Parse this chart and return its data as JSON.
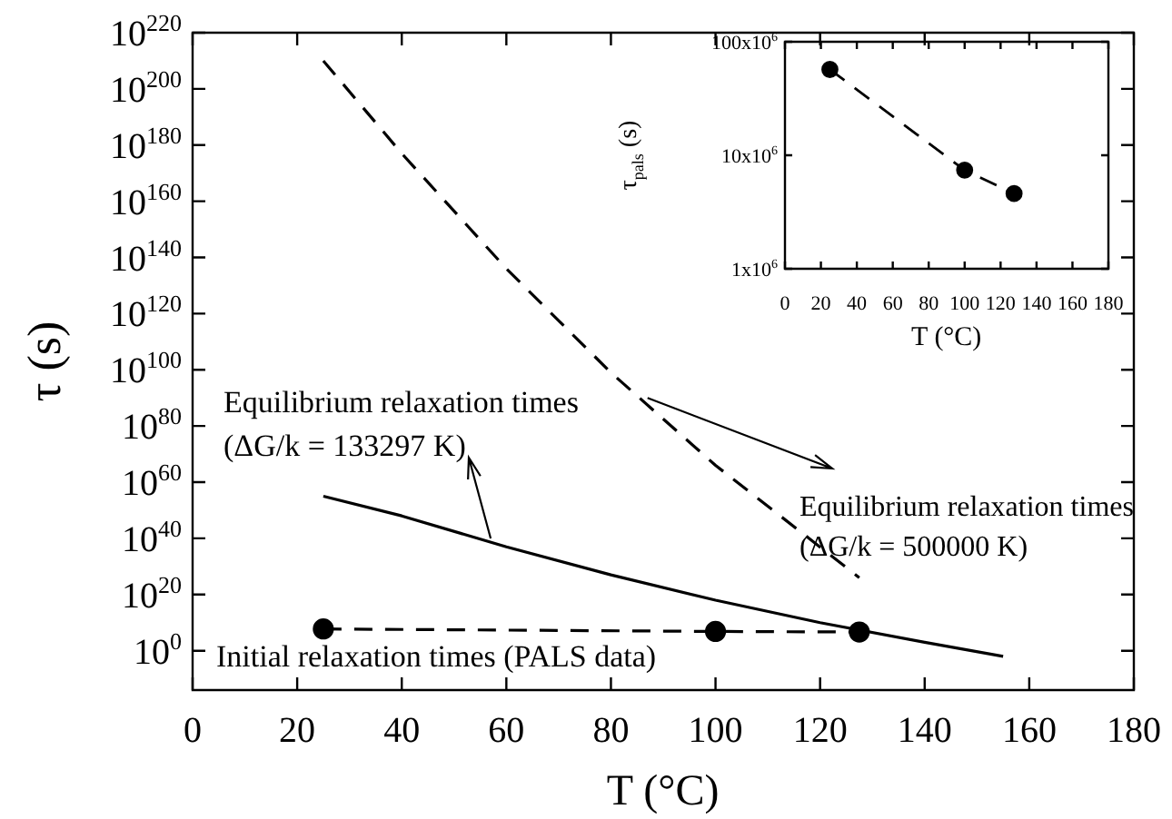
{
  "chart_data": [
    {
      "type": "line",
      "xlabel": "T (°C)",
      "ylabel": "τ (s)",
      "log": "y",
      "xlim": [
        0,
        180
      ],
      "xticks": [
        0,
        20,
        40,
        60,
        80,
        100,
        120,
        140,
        160,
        180
      ],
      "ylim": [
        1e-14,
        1e+220
      ],
      "yticks": [
        {
          "value": 1,
          "label": "10$^{0}$"
        },
        {
          "value": 1e+20,
          "label": "10$^{20}$"
        },
        {
          "value": 1e+40,
          "label": "10$^{40}$"
        },
        {
          "value": 1e+60,
          "label": "10$^{60}$"
        },
        {
          "value": 1e+80,
          "label": "10$^{80}$"
        },
        {
          "value": 1e+100,
          "label": "10$^{100}$"
        },
        {
          "value": 1e+120,
          "label": "10$^{120}$"
        },
        {
          "value": 1e+140,
          "label": "10$^{140}$"
        },
        {
          "value": 1e+160,
          "label": "10$^{160}$"
        },
        {
          "value": 1e+180,
          "label": "10$^{180}$"
        },
        {
          "value": 1e+200,
          "label": "10$^{200}$"
        },
        {
          "value": 1e+220,
          "label": "10$^{220}$"
        }
      ],
      "series": [
        {
          "color": "#000000",
          "line_style": "dashed",
          "marker": "none",
          "x": [
            25,
            40,
            60,
            80,
            100,
            127.5
          ],
          "values": [
            1e+210,
            1e+177,
            1e+136,
            1e+99,
            1e+66,
            1e+26
          ]
        },
        {
          "color": "#000000",
          "line_style": "solid",
          "marker": "none",
          "x": [
            25,
            40,
            60,
            80,
            100,
            120,
            140,
            155
          ],
          "values": [
            1e+55,
            1e+48,
            1e+37,
            1e+27,
            1e+18,
            10000000000.0,
            1000.0,
            0.01
          ]
        },
        {
          "color": "#000000",
          "line_style": "dashed",
          "marker": "circle",
          "x": [
            25,
            100,
            127.5
          ],
          "values": [
            57000000.0,
            7400000.0,
            4600000.0
          ]
        }
      ],
      "annotations": [
        {
          "text": "Equilibrium relaxation times\n(ΔG/k = 133297 K)",
          "x": 57,
          "y": 1e+40
        },
        {
          "text": "Equilibrium relaxation times\n(ΔG/k = 500000 K)",
          "x": 87,
          "y": 1e+90
        },
        "Initial relaxation times (PALS data)"
      ]
    },
    {
      "type": "line",
      "xlabel": "T (°C)",
      "ylabel": "τ$_{pals}$ (s)",
      "log": "y",
      "xlim": [
        0,
        180
      ],
      "xticks": [
        0,
        20,
        40,
        60,
        80,
        100,
        120,
        140,
        160,
        180
      ],
      "ylim": [
        1000000.0,
        100000000.0
      ],
      "yticks": [
        {
          "value": 1000000.0,
          "label": "1x10$^{6}$"
        },
        {
          "value": 10000000.0,
          "label": "10x10$^{6}$"
        },
        {
          "value": 100000000.0,
          "label": "100x10$^{6}$"
        }
      ],
      "series": [
        {
          "color": "#000000",
          "line_style": "dashed",
          "marker": "circle",
          "x": [
            25,
            100,
            127.5
          ],
          "values": [
            57000000.0,
            7400000.0,
            4600000.0
          ]
        }
      ]
    }
  ]
}
